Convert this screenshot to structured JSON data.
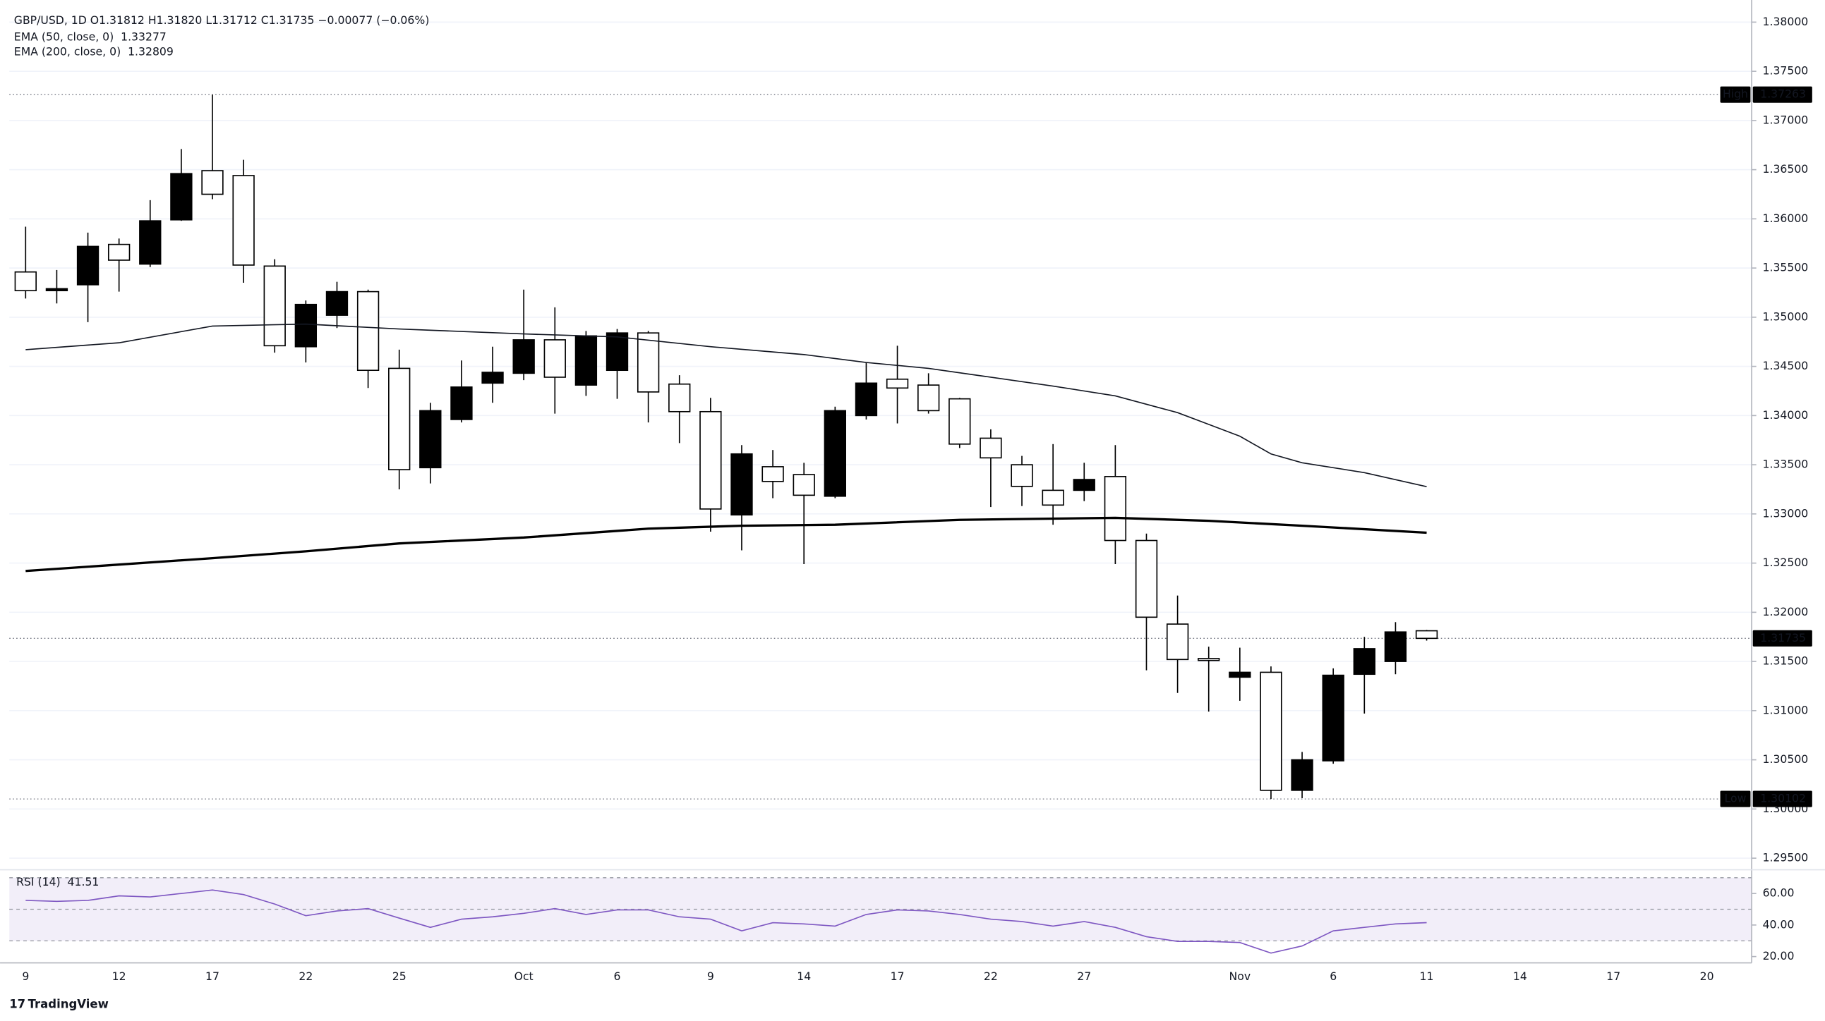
{
  "header": "GBP/USD, 1D  O1.31812  H1.31820  L1.31712  C1.31735  −0.00077 (−0.06%)",
  "footer": "TradingView",
  "chart_data": [
    {
      "type": "candlestick",
      "x": [
        "9",
        null,
        null,
        "12",
        null,
        null,
        "17",
        null,
        null,
        "22",
        null,
        null,
        "25",
        null,
        null,
        null,
        "Oct",
        null,
        null,
        "6",
        null,
        null,
        "9",
        null,
        null,
        "14",
        null,
        null,
        "17",
        null,
        null,
        "22",
        null,
        null,
        "27",
        null,
        null,
        null,
        null,
        "Nov",
        null,
        null,
        "6",
        null,
        null,
        "11",
        null,
        null,
        "14",
        null,
        null,
        "17",
        null,
        null,
        "20"
      ],
      "open": [
        1.3546,
        1.3527,
        1.3533,
        1.3574,
        1.3554,
        1.3599,
        1.3649,
        1.3644,
        1.3552,
        1.347,
        1.3502,
        1.3526,
        1.3448,
        1.3347,
        1.3396,
        1.3433,
        1.3443,
        1.3477,
        1.3431,
        1.3446,
        1.3484,
        1.3432,
        1.3404,
        1.3299,
        1.3348,
        1.334,
        1.3318,
        1.34,
        1.3437,
        1.3431,
        1.3417,
        1.3377,
        1.335,
        1.3324,
        1.3324,
        1.3338,
        1.3273,
        1.3188,
        1.3153,
        1.3134,
        1.3139,
        1.3019,
        1.3049,
        1.3137,
        1.315,
        1.31812,
        null,
        null,
        null,
        null,
        null,
        null,
        null,
        null,
        null
      ],
      "high": [
        1.3592,
        1.3548,
        1.3586,
        1.358,
        1.3619,
        1.3671,
        1.37263,
        1.366,
        1.3559,
        1.3517,
        1.3536,
        1.3528,
        1.3467,
        1.3413,
        1.3456,
        1.347,
        1.3528,
        1.351,
        1.3486,
        1.3488,
        1.3486,
        1.3441,
        1.3418,
        1.337,
        1.3365,
        1.3352,
        1.3409,
        1.3454,
        1.3471,
        1.3443,
        1.3418,
        1.3386,
        1.3359,
        1.3371,
        1.3352,
        1.337,
        1.328,
        1.3217,
        1.3165,
        1.3164,
        1.3145,
        1.3058,
        1.3143,
        1.3175,
        1.319,
        1.3182,
        null,
        null,
        null,
        null,
        null,
        null,
        null,
        null,
        null
      ],
      "low": [
        1.3519,
        1.3514,
        1.3495,
        1.3526,
        1.3551,
        1.3598,
        1.362,
        1.3535,
        1.3464,
        1.3454,
        1.3489,
        1.3428,
        1.3325,
        1.3331,
        1.3393,
        1.3413,
        1.3436,
        1.3402,
        1.342,
        1.3417,
        1.3393,
        1.3372,
        1.3282,
        1.3263,
        1.3316,
        1.3249,
        1.3316,
        1.3396,
        1.3392,
        1.3402,
        1.3367,
        1.3307,
        1.3308,
        1.3289,
        1.3313,
        1.3249,
        1.3141,
        1.3118,
        1.3099,
        1.311,
        1.30102,
        1.3011,
        1.3046,
        1.3097,
        1.3137,
        1.31712,
        null,
        null,
        null,
        null,
        null,
        null,
        null,
        null,
        null
      ],
      "close": [
        1.3527,
        1.3529,
        1.3572,
        1.3558,
        1.3598,
        1.3646,
        1.3625,
        1.3553,
        1.3471,
        1.3513,
        1.3526,
        1.3446,
        1.3345,
        1.3405,
        1.3429,
        1.3444,
        1.3477,
        1.3439,
        1.3481,
        1.3484,
        1.3424,
        1.3404,
        1.3305,
        1.3361,
        1.3333,
        1.3319,
        1.3405,
        1.3433,
        1.3428,
        1.3405,
        1.3371,
        1.3357,
        1.3328,
        1.3309,
        1.3335,
        1.3273,
        1.3195,
        1.3152,
        1.3151,
        1.3139,
        1.3019,
        1.305,
        1.3136,
        1.3163,
        1.318,
        1.31735,
        null,
        null,
        null,
        null,
        null,
        null,
        null,
        null,
        null
      ],
      "up_color": "#000000",
      "down_color": "#ffffff",
      "wick_color": "#000000",
      "ylim": [
        1.29417,
        1.38225
      ],
      "yticks": [
        {
          "value": 1.295,
          "label": "1.29500"
        },
        {
          "value": 1.3,
          "label": "1.30000"
        },
        {
          "value": 1.305,
          "label": "1.30500"
        },
        {
          "value": 1.31,
          "label": "1.31000"
        },
        {
          "value": 1.315,
          "label": "1.31500"
        },
        {
          "value": 1.32,
          "label": "1.32000"
        },
        {
          "value": 1.325,
          "label": "1.32500"
        },
        {
          "value": 1.33,
          "label": "1.33000"
        },
        {
          "value": 1.335,
          "label": "1.33500"
        },
        {
          "value": 1.34,
          "label": "1.34000"
        },
        {
          "value": 1.345,
          "label": "1.34500"
        },
        {
          "value": 1.35,
          "label": "1.35000"
        },
        {
          "value": 1.355,
          "label": "1.35500"
        },
        {
          "value": 1.36,
          "label": "1.36000"
        },
        {
          "value": 1.365,
          "label": "1.36500"
        },
        {
          "value": 1.37,
          "label": "1.37000"
        },
        {
          "value": 1.375,
          "label": "1.37500"
        },
        {
          "value": 1.38,
          "label": "1.38000"
        }
      ],
      "grid": true,
      "high_label": "High",
      "low_label": "Low",
      "overlays": [
        {
          "name": "EMA (50, close, 0)",
          "color": "#131722",
          "width": 1,
          "x": [
            0,
            3,
            6,
            9,
            12,
            16,
            19,
            22,
            25,
            27,
            29,
            31,
            33,
            35,
            37,
            38,
            39,
            40,
            41,
            43,
            45
          ],
          "values": [
            1.3467,
            1.3474,
            1.3491,
            1.3493,
            1.3488,
            1.3483,
            1.348,
            1.347,
            1.3462,
            1.3454,
            1.3448,
            1.3439,
            1.343,
            1.342,
            1.3403,
            1.3391,
            1.3379,
            1.3361,
            1.3352,
            1.3342,
            1.33277
          ]
        },
        {
          "name": "EMA (200, close, 0)",
          "color": "#000000",
          "width": 2,
          "x": [
            0,
            6,
            9,
            12,
            16,
            20,
            23,
            26,
            30,
            35,
            38,
            41,
            45
          ],
          "values": [
            1.3242,
            1.3255,
            1.3262,
            1.327,
            1.3276,
            1.3285,
            1.3288,
            1.3289,
            1.3294,
            1.3296,
            1.3293,
            1.3288,
            1.32809
          ]
        }
      ]
    },
    {
      "type": "line",
      "name": "RSI (14)",
      "color": "#7e57c2",
      "band_color": "#ede7f6",
      "values": [
        55.6,
        55.0,
        55.6,
        58.5,
        57.8,
        60.0,
        62.2,
        59.3,
        53.3,
        45.9,
        48.9,
        50.4,
        44.4,
        38.5,
        43.7,
        45.2,
        47.4,
        50.4,
        46.7,
        49.6,
        49.6,
        45.2,
        43.7,
        36.3,
        41.5,
        40.7,
        39.3,
        46.7,
        49.6,
        48.9,
        46.7,
        43.7,
        42.2,
        39.3,
        42.2,
        38.5,
        32.6,
        29.6,
        29.6,
        28.9,
        22.2,
        26.7,
        36.3,
        38.5,
        40.7,
        41.51,
        null,
        null,
        null,
        null,
        null,
        null,
        null,
        null,
        null
      ],
      "ylim": [
        16,
        75
      ],
      "yticks": [
        {
          "value": 20,
          "label": "20.00"
        },
        {
          "value": 40,
          "label": "40.00"
        },
        {
          "value": 60,
          "label": "60.00"
        }
      ],
      "levels": [
        70,
        50,
        30
      ]
    }
  ]
}
